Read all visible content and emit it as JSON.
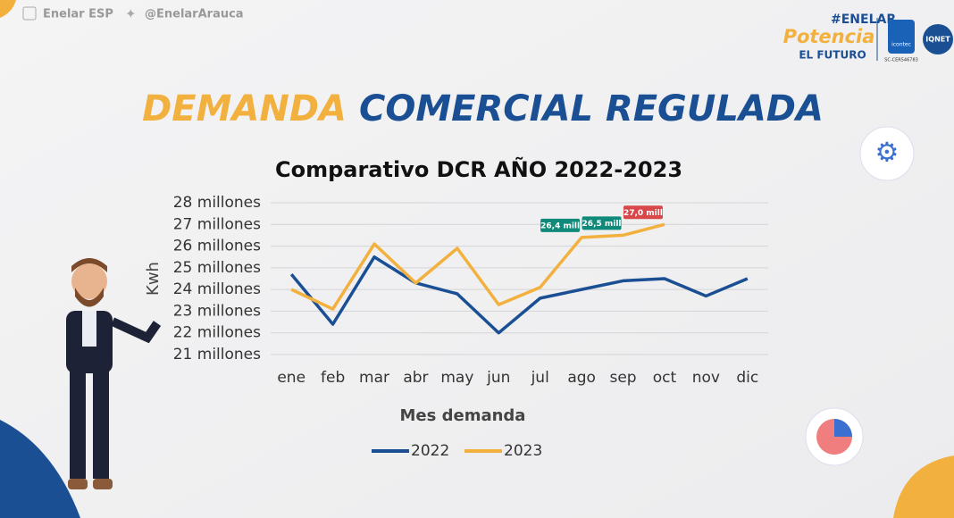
{
  "header": {
    "social": [
      "Enelar ESP",
      "@EnelarArauca"
    ],
    "title_part1": "DEMANDA",
    "title_part2": "COMERCIAL REGULADA",
    "logo_hashtag": "#ENELAR",
    "logo_word": "Potencia",
    "logo_sub": "EL FUTURO",
    "cert1": "icontec",
    "cert2": "IQNET",
    "cert_code": "SC-CER546783"
  },
  "chart_data": {
    "type": "line",
    "title": "Comparativo DCR AÑO 2022-2023",
    "x_label": "Mes demanda",
    "y_label": "Kwh",
    "categories": [
      "ene",
      "feb",
      "mar",
      "abr",
      "may",
      "jun",
      "jul",
      "ago",
      "sep",
      "oct",
      "nov",
      "dic"
    ],
    "series": [
      {
        "name": "2022",
        "color": "#1a4f93",
        "values": [
          24700000,
          22400000,
          25500000,
          24300000,
          23800000,
          22000000,
          23600000,
          24000000,
          24400000,
          24500000,
          23700000,
          24500000
        ]
      },
      {
        "name": "2023",
        "color": "#f2b13e",
        "values": [
          24000000,
          23100000,
          26100000,
          24300000,
          25900000,
          23300000,
          24100000,
          26400000,
          26500000,
          27000000,
          null,
          null
        ],
        "value_labels": [
          null,
          null,
          null,
          null,
          null,
          null,
          null,
          "26,4 mill",
          "26,5 mill",
          "27,0 mill",
          null,
          null
        ],
        "value_label_colors": [
          null,
          null,
          null,
          null,
          null,
          null,
          null,
          "#0f8a7a",
          "#0f8a7a",
          "#d9474a",
          null,
          null
        ]
      }
    ],
    "ylim": [
      21000000,
      28000000
    ],
    "yticks": [
      {
        "value": 21000000,
        "label": "21 millones"
      },
      {
        "value": 22000000,
        "label": "22 millones"
      },
      {
        "value": 23000000,
        "label": "23 millones"
      },
      {
        "value": 24000000,
        "label": "24 millones"
      },
      {
        "value": 25000000,
        "label": "25 millones"
      },
      {
        "value": 26000000,
        "label": "26 millones"
      },
      {
        "value": 27000000,
        "label": "27 millones"
      },
      {
        "value": 28000000,
        "label": "28 millones"
      }
    ],
    "grid": true,
    "legend": "bottom"
  }
}
